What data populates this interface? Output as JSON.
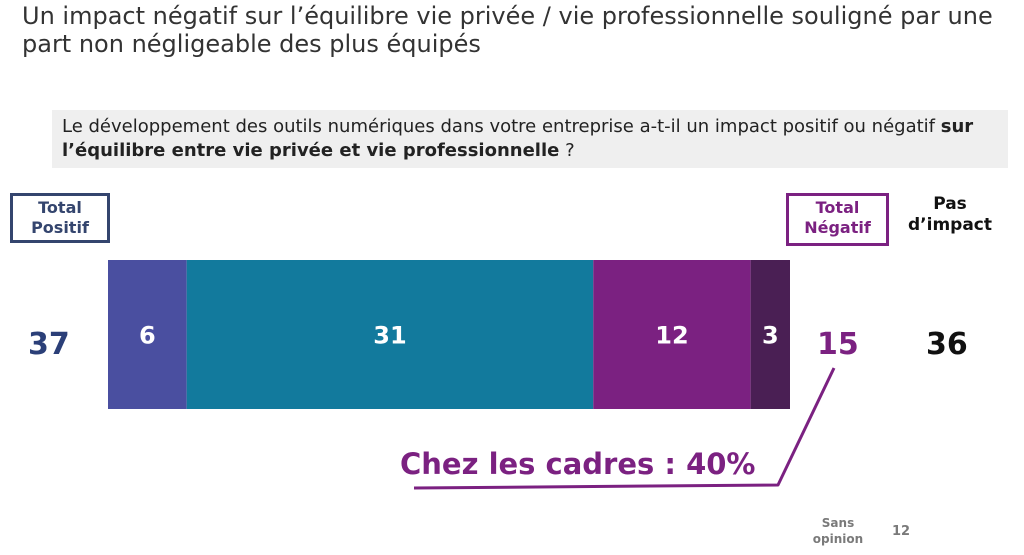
{
  "title": "Un impact négatif sur l’équilibre vie privée / vie professionnelle souligné par une part non négligeable des plus équipés",
  "question": {
    "prefix": "Le développement des outils numériques dans votre entreprise a-t-il un impact positif ou négatif ",
    "bold": "sur l’équilibre entre vie privée et vie professionnelle",
    "suffix": " ?"
  },
  "labels": {
    "total_positif": "Total Positif",
    "total_negatif": "Total Négatif",
    "pas_impact": "Pas d’impact",
    "sans_opinion": "Sans opinion"
  },
  "totals": {
    "positif": "37",
    "negatif": "15",
    "pas_impact": "36",
    "sans_opinion": "12"
  },
  "callout": "Chez les cadres : 40%",
  "chart_data": {
    "type": "bar",
    "orientation": "horizontal-stacked",
    "xlim": [
      0,
      52
    ],
    "segments": [
      {
        "value": 6,
        "color": "#4a4fa0"
      },
      {
        "value": 31,
        "color": "#127a9d"
      },
      {
        "value": 12,
        "color": "#7b2181"
      },
      {
        "value": 3,
        "color": "#4a1f54"
      }
    ]
  },
  "colors": {
    "positive": "#34456e",
    "negative": "#7b2181"
  }
}
